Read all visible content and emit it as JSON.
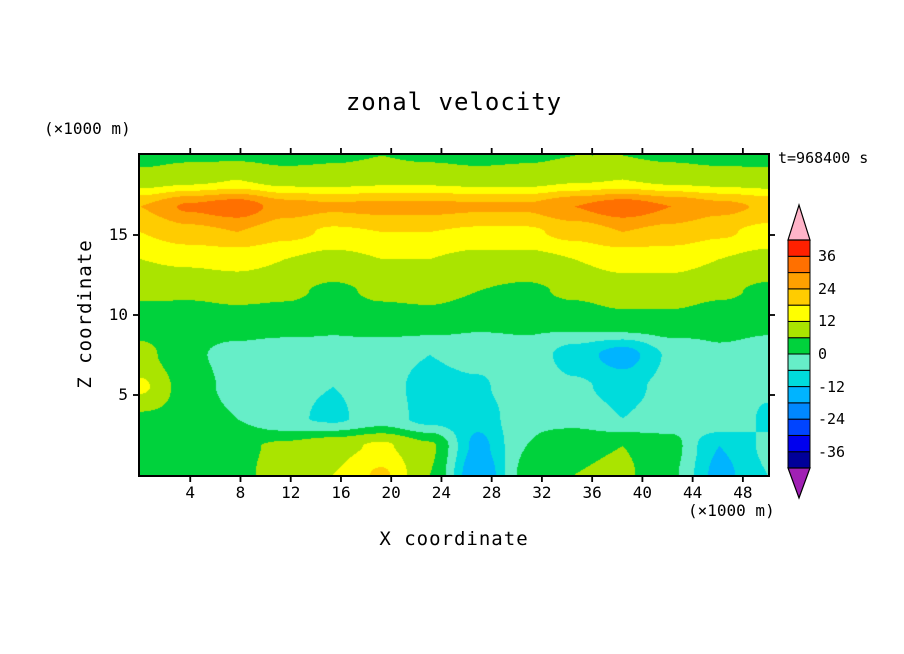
{
  "title": "zonal velocity",
  "timestamp": "t=968400 s",
  "x_axis": {
    "label": "X coordinate",
    "unit": "(×1000 m)",
    "ticks": [
      4,
      8,
      12,
      16,
      20,
      24,
      28,
      32,
      36,
      40,
      44,
      48
    ],
    "range": [
      0,
      50
    ]
  },
  "z_axis": {
    "label": "Z coordinate",
    "unit": "(×1000 m)",
    "ticks": [
      5,
      10,
      15
    ],
    "range": [
      0,
      20
    ]
  },
  "colorbar": {
    "labels": [
      36,
      24,
      12,
      0,
      -12,
      -24,
      -36
    ],
    "levels": [
      -42,
      -36,
      -30,
      -24,
      -18,
      -12,
      -6,
      0,
      6,
      12,
      18,
      24,
      30,
      36,
      42
    ],
    "colors": [
      "#000099",
      "#0000ee",
      "#0044ff",
      "#0088ff",
      "#00b4ff",
      "#00dcdc",
      "#66eec8",
      "#00d23c",
      "#aae400",
      "#ffff00",
      "#ffcc00",
      "#ffa000",
      "#ff7000",
      "#ff2000"
    ],
    "arrow_high_color": "#ffb4c8",
    "arrow_low_color": "#a020b4",
    "outline_color": "#000000"
  },
  "chart_data": {
    "type": "heatmap",
    "title": "zonal velocity",
    "xlabel": "X coordinate (×1000 m)",
    "ylabel": "Z coordinate (×1000 m)",
    "units": "zonal velocity, filled contours every 6 units from -42 to 42",
    "x": [
      0,
      3.8,
      7.7,
      11.5,
      15.4,
      19.2,
      23.1,
      26.9,
      30.8,
      34.6,
      38.5,
      42.3,
      46.2,
      50
    ],
    "z": [
      20,
      18.5,
      16.8,
      15.2,
      13.5,
      11.5,
      9.5,
      7.5,
      5.5,
      3.5,
      1.8,
      0
    ],
    "values": [
      [
        4,
        5,
        5,
        4,
        5,
        6,
        5,
        4,
        5,
        6,
        6,
        5,
        4,
        4
      ],
      [
        8,
        10,
        12,
        9,
        9,
        10,
        10,
        9,
        9,
        11,
        12,
        10,
        9,
        8
      ],
      [
        24,
        31,
        34,
        27,
        25,
        26,
        26,
        25,
        25,
        30,
        34,
        30,
        26,
        23
      ],
      [
        18,
        22,
        24,
        20,
        17,
        18,
        18,
        17,
        17,
        20,
        24,
        22,
        19,
        16
      ],
      [
        12,
        13,
        14,
        12,
        10,
        12,
        12,
        10,
        10,
        12,
        14,
        14,
        12,
        10
      ],
      [
        7,
        7,
        8,
        7,
        5,
        7,
        8,
        6,
        5,
        7,
        9,
        9,
        7,
        5
      ],
      [
        3,
        2,
        3,
        3,
        1,
        3,
        3,
        1,
        1,
        2,
        4,
        4,
        2,
        1
      ],
      [
        8,
        1,
        -2,
        -4,
        -2,
        -4,
        -6,
        -4,
        -2,
        -9,
        -15,
        -5,
        -1,
        -2
      ],
      [
        13,
        3,
        -2,
        -5,
        -6,
        -4,
        -8,
        -7,
        -1,
        -5,
        -8,
        -4,
        -2,
        -5
      ],
      [
        5,
        4,
        0,
        -5,
        -7,
        -3,
        -8,
        -10,
        -1,
        -2,
        -6,
        -3,
        0,
        -7
      ],
      [
        3,
        4,
        5,
        7,
        10,
        13,
        7,
        -14,
        0,
        5,
        6,
        2,
        -12,
        -5
      ],
      [
        2,
        3,
        5,
        8,
        12,
        19,
        6,
        -18,
        2,
        6,
        7,
        1,
        -14,
        -6
      ]
    ]
  }
}
